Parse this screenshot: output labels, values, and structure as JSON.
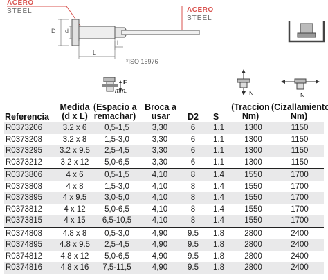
{
  "diagram": {
    "material_left_es": "ACERO",
    "material_left_en": "STEEL",
    "material_right_es": "ACERO",
    "material_right_en": "STEEL",
    "dim_D": "D",
    "dim_d": "d",
    "dim_L": "L",
    "dim_l": "l",
    "standard": "*ISO 15976"
  },
  "icons": {
    "grip_unit": "mm.",
    "grip_letter": "E",
    "tension_unit": "N",
    "shear_unit": "N"
  },
  "colors": {
    "accent": "#d9534f",
    "row_alt": "#e9e9ea"
  },
  "columns": [
    [
      "Referencia"
    ],
    [
      "Medida",
      "(d x L)"
    ],
    [
      "(Espacio a",
      "remachar)"
    ],
    [
      "Broca a",
      "usar"
    ],
    [
      "D2"
    ],
    [
      "S"
    ],
    [
      "(Traccion",
      "Nm)"
    ],
    [
      "(Cizallamiento",
      "Nm)"
    ]
  ],
  "rows": [
    [
      "R0373206",
      "3.2 x 6",
      "0,5-1,5",
      "3,30",
      "6",
      "1.1",
      "1300",
      "1150"
    ],
    [
      "R0373208",
      "3.2 x 8",
      "1,5-3,0",
      "3,30",
      "6",
      "1.1",
      "1300",
      "1150"
    ],
    [
      "R0373295",
      "3.2 x 9.5",
      "2,5-4,5",
      "3,30",
      "6",
      "1.1",
      "1300",
      "1150"
    ],
    [
      "R0373212",
      "3.2 x 12",
      "5,0-6,5",
      "3,30",
      "6",
      "1.1",
      "1300",
      "1150"
    ],
    [
      "R0373806",
      "4 x 6",
      "0,5-1,5",
      "4,10",
      "8",
      "1.4",
      "1550",
      "1700"
    ],
    [
      "R0373808",
      "4 x 8",
      "1,5-3,0",
      "4,10",
      "8",
      "1.4",
      "1550",
      "1700"
    ],
    [
      "R0373895",
      "4 x 9.5",
      "3,0-5,0",
      "4,10",
      "8",
      "1.4",
      "1550",
      "1700"
    ],
    [
      "R0373812",
      "4 x 12",
      "5,0-6,5",
      "4,10",
      "8",
      "1.4",
      "1550",
      "1700"
    ],
    [
      "R0373815",
      "4 x 15",
      "6,5-10,5",
      "4,10",
      "8",
      "1.4",
      "1550",
      "1700"
    ],
    [
      "R0374808",
      "4.8 x 8",
      "0,5-3,0",
      "4,90",
      "9.5",
      "1.8",
      "2800",
      "2400"
    ],
    [
      "R0374895",
      "4.8 x 9.5",
      "2,5-4,5",
      "4,90",
      "9.5",
      "1.8",
      "2800",
      "2400"
    ],
    [
      "R0374812",
      "4.8 x 12",
      "5,0-6,5",
      "4,90",
      "9.5",
      "1.8",
      "2800",
      "2400"
    ],
    [
      "R0374816",
      "4.8 x 16",
      "7,5-11,5",
      "4,90",
      "9.5",
      "1.8",
      "2800",
      "2400"
    ]
  ]
}
